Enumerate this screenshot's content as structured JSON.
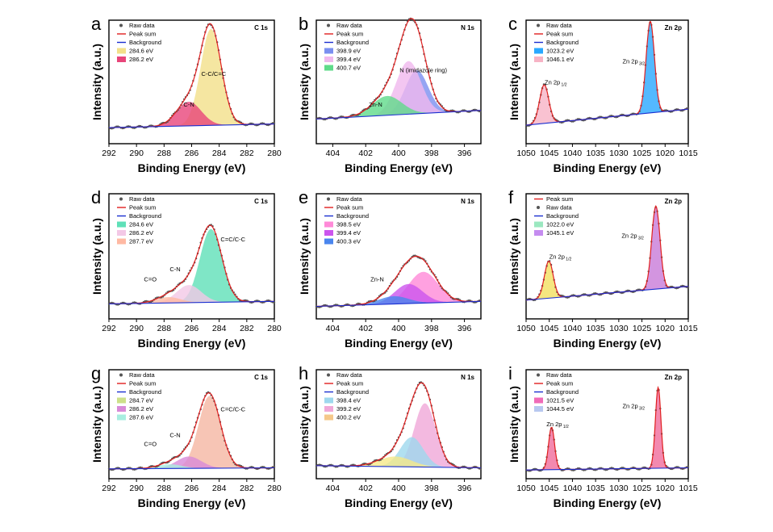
{
  "figure": {
    "panel_letters": [
      "a",
      "b",
      "c",
      "d",
      "e",
      "f",
      "g",
      "h",
      "i"
    ]
  },
  "chart_data": [
    {
      "panel": "a",
      "type": "line",
      "region": "C 1s",
      "xlabel": "Binding Energy (eV)",
      "ylabel": "Intensity (a.u.)",
      "xlim": [
        292,
        280
      ],
      "xticks": [
        "292",
        "290",
        "288",
        "286",
        "284",
        "282",
        "280"
      ],
      "legend": [
        {
          "label": "Raw data",
          "color": "#555555",
          "kind": "dot"
        },
        {
          "label": "Peak sum",
          "color": "#e02020",
          "kind": "line"
        },
        {
          "label": "Background",
          "color": "#1a2fd0",
          "kind": "line"
        },
        {
          "label": "284.6 eV",
          "color": "#f3e08a",
          "kind": "box"
        },
        {
          "label": "286.2 eV",
          "color": "#e8457a",
          "kind": "box"
        }
      ],
      "peaks": [
        {
          "center": 284.6,
          "height": 1.0,
          "sigma": 0.75,
          "color": "#f3e08a"
        },
        {
          "center": 286.2,
          "height": 0.25,
          "sigma": 0.9,
          "color": "#e8457a"
        }
      ],
      "annotations": [
        {
          "text": "C-N",
          "at": 286.2
        },
        {
          "text": "C-C/C=C",
          "at": 284.4
        }
      ]
    },
    {
      "panel": "b",
      "type": "line",
      "region": "N 1s",
      "xlabel": "Binding Energy (eV)",
      "ylabel": "Intensity (a.u.)",
      "xlim": [
        405,
        395
      ],
      "xticks": [
        "404",
        "402",
        "400",
        "398",
        "396"
      ],
      "legend": [
        {
          "label": "Raw data",
          "color": "#555555",
          "kind": "dot"
        },
        {
          "label": "Peak sum",
          "color": "#e02020",
          "kind": "line"
        },
        {
          "label": "Background",
          "color": "#1a2fd0",
          "kind": "line"
        },
        {
          "label": "398.9 eV",
          "color": "#7a8ff0",
          "kind": "box"
        },
        {
          "label": "399.4 eV",
          "color": "#f0b8ee",
          "kind": "box"
        },
        {
          "label": "400.7 eV",
          "color": "#5fdb8a",
          "kind": "box"
        }
      ],
      "peaks": [
        {
          "center": 398.9,
          "height": 0.45,
          "sigma": 0.7,
          "color": "#7a8ff0"
        },
        {
          "center": 399.4,
          "height": 0.55,
          "sigma": 0.75,
          "color": "#f0b8ee"
        },
        {
          "center": 400.7,
          "height": 0.2,
          "sigma": 0.9,
          "color": "#5fdb8a"
        }
      ],
      "annotations": [
        {
          "text": "Zn-N",
          "at": 401.4
        },
        {
          "text": "N (imidazole ring)",
          "at": 398.5
        }
      ]
    },
    {
      "panel": "c",
      "type": "line",
      "region": "Zn 2p",
      "xlabel": "Binding Energy (eV)",
      "ylabel": "Intensity (a.u.)",
      "xlim": [
        1050,
        1015
      ],
      "xticks": [
        "1050",
        "1045",
        "1040",
        "1035",
        "1030",
        "1025",
        "1020",
        "1015"
      ],
      "legend": [
        {
          "label": "Raw data",
          "color": "#555555",
          "kind": "dot"
        },
        {
          "label": "Peak sum",
          "color": "#e02020",
          "kind": "line"
        },
        {
          "label": "Background",
          "color": "#1a2fd0",
          "kind": "line"
        },
        {
          "label": "1023.2 eV",
          "color": "#29a8ff",
          "kind": "box"
        },
        {
          "label": "1046.1 eV",
          "color": "#f7b3c5",
          "kind": "box"
        }
      ],
      "peaks": [
        {
          "center": 1023.2,
          "height": 0.95,
          "sigma": 0.9,
          "color": "#29a8ff"
        },
        {
          "center": 1046.1,
          "height": 0.4,
          "sigma": 1.0,
          "color": "#f7b3c5"
        }
      ],
      "annotations": [
        {
          "text": "Zn 2p",
          "sub": "1/2",
          "at": 1043.6
        },
        {
          "text": "Zn 2p",
          "sub": "3/2",
          "at": 1026.8
        }
      ]
    },
    {
      "panel": "d",
      "type": "line",
      "region": "C 1s",
      "xlabel": "Binding Energy (eV)",
      "ylabel": "Intensity (a.u.)",
      "xlim": [
        292,
        280
      ],
      "xticks": [
        "292",
        "290",
        "288",
        "286",
        "284",
        "282",
        "280"
      ],
      "legend": [
        {
          "label": "Raw data",
          "color": "#555555",
          "kind": "dot"
        },
        {
          "label": "Peak sum",
          "color": "#e02020",
          "kind": "line"
        },
        {
          "label": "Background",
          "color": "#1a2fd0",
          "kind": "line"
        },
        {
          "label": "284.6 eV",
          "color": "#5fe0b8",
          "kind": "box"
        },
        {
          "label": "286.2 eV",
          "color": "#f3c8e6",
          "kind": "box"
        },
        {
          "label": "287.7 eV",
          "color": "#ffb9a3",
          "kind": "box"
        }
      ],
      "peaks": [
        {
          "center": 284.6,
          "height": 0.75,
          "sigma": 0.8,
          "color": "#5fe0b8"
        },
        {
          "center": 286.2,
          "height": 0.18,
          "sigma": 0.9,
          "color": "#f3c8e6"
        },
        {
          "center": 287.7,
          "height": 0.06,
          "sigma": 0.9,
          "color": "#ffb9a3"
        }
      ],
      "annotations": [
        {
          "text": "C=O",
          "at": 289.0
        },
        {
          "text": "C-N",
          "at": 287.2
        },
        {
          "text": "C=C/C-C",
          "at": 283.0
        }
      ]
    },
    {
      "panel": "e",
      "type": "line",
      "region": "N 1s",
      "xlabel": "Binding Energy (eV)",
      "ylabel": "Intensity (a.u.)",
      "xlim": [
        405,
        395
      ],
      "xticks": [
        "404",
        "402",
        "400",
        "398",
        "396"
      ],
      "legend": [
        {
          "label": "Raw data",
          "color": "#555555",
          "kind": "dot"
        },
        {
          "label": "Peak sum",
          "color": "#e02020",
          "kind": "line"
        },
        {
          "label": "Background",
          "color": "#1a2fd0",
          "kind": "line"
        },
        {
          "label": "398.5 eV",
          "color": "#ff8ad8",
          "kind": "box"
        },
        {
          "label": "399.4 eV",
          "color": "#cc55ee",
          "kind": "box"
        },
        {
          "label": "400.3 eV",
          "color": "#4a86ee",
          "kind": "box"
        }
      ],
      "peaks": [
        {
          "center": 398.5,
          "height": 0.32,
          "sigma": 0.9,
          "color": "#ff8ad8"
        },
        {
          "center": 399.4,
          "height": 0.2,
          "sigma": 0.85,
          "color": "#cc55ee"
        },
        {
          "center": 400.3,
          "height": 0.08,
          "sigma": 0.9,
          "color": "#4a86ee"
        }
      ],
      "annotations": [
        {
          "text": "Zn-N",
          "at": 401.3
        }
      ]
    },
    {
      "panel": "f",
      "type": "line",
      "region": "Zn 2p",
      "xlabel": "Binding Energy (eV)",
      "ylabel": "Intensity (a.u.)",
      "xlim": [
        1050,
        1015
      ],
      "xticks": [
        "1050",
        "1045",
        "1040",
        "1035",
        "1030",
        "1025",
        "1020",
        "1015"
      ],
      "legend": [
        {
          "label": "Peak sum",
          "color": "#e02020",
          "kind": "line"
        },
        {
          "label": "Raw data",
          "color": "#555555",
          "kind": "dot"
        },
        {
          "label": "Background",
          "color": "#1a2fd0",
          "kind": "line"
        },
        {
          "label": "1022.0 eV",
          "color": "#9be8c0",
          "kind": "box"
        },
        {
          "label": "1045.1 eV",
          "color": "#c58cf0",
          "kind": "box"
        }
      ],
      "peaks": [
        {
          "center": 1022.0,
          "height": 0.85,
          "sigma": 0.9,
          "color": "#c87ad8"
        },
        {
          "center": 1045.1,
          "height": 0.38,
          "sigma": 0.95,
          "color": "#f2e060"
        }
      ],
      "annotations": [
        {
          "text": "Zn 2p",
          "sub": "1/2",
          "at": 1042.6
        },
        {
          "text": "Zn 2p",
          "sub": "3/2",
          "at": 1027.0
        }
      ]
    },
    {
      "panel": "g",
      "type": "line",
      "region": "C 1s",
      "xlabel": "Binding Energy (eV)",
      "ylabel": "Intensity (a.u.)",
      "xlim": [
        292,
        280
      ],
      "xticks": [
        "292",
        "290",
        "288",
        "286",
        "284",
        "282",
        "280"
      ],
      "legend": [
        {
          "label": "Raw data",
          "color": "#555555",
          "kind": "dot"
        },
        {
          "label": "Peak sum",
          "color": "#e02020",
          "kind": "line"
        },
        {
          "label": "Background",
          "color": "#1a2fd0",
          "kind": "line"
        },
        {
          "label": "284.7 eV",
          "color": "#cde08a",
          "kind": "box"
        },
        {
          "label": "286.2 eV",
          "color": "#d88ad8",
          "kind": "box"
        },
        {
          "label": "287.6 eV",
          "color": "#a8eee0",
          "kind": "box"
        }
      ],
      "peaks": [
        {
          "center": 284.7,
          "height": 0.85,
          "sigma": 0.8,
          "color": "#f5b7a3"
        },
        {
          "center": 286.2,
          "height": 0.14,
          "sigma": 0.9,
          "color": "#d88ad8"
        },
        {
          "center": 287.6,
          "height": 0.05,
          "sigma": 0.9,
          "color": "#a8eee0"
        }
      ],
      "annotations": [
        {
          "text": "C=O",
          "at": 289.0
        },
        {
          "text": "C-N",
          "at": 287.2
        },
        {
          "text": "C=C/C-C",
          "at": 283.0
        }
      ]
    },
    {
      "panel": "h",
      "type": "line",
      "region": "N 1s",
      "xlabel": "Binding Energy (eV)",
      "ylabel": "Intensity (a.u.)",
      "xlim": [
        405,
        395
      ],
      "xticks": [
        "404",
        "402",
        "400",
        "398",
        "396"
      ],
      "legend": [
        {
          "label": "Raw data",
          "color": "#555555",
          "kind": "dot"
        },
        {
          "label": "Peak sum",
          "color": "#e02020",
          "kind": "line"
        },
        {
          "label": "Background",
          "color": "#1a2fd0",
          "kind": "line"
        },
        {
          "label": "398.4 eV",
          "color": "#9ed8ee",
          "kind": "box"
        },
        {
          "label": "399.2 eV",
          "color": "#f0a8d8",
          "kind": "box"
        },
        {
          "label": "400.2 eV",
          "color": "#f5c88a",
          "kind": "box"
        }
      ],
      "peaks": [
        {
          "center": 398.4,
          "height": 0.75,
          "sigma": 0.65,
          "color": "#f0a8d8"
        },
        {
          "center": 399.2,
          "height": 0.35,
          "sigma": 0.7,
          "color": "#9ed8ee"
        },
        {
          "center": 400.2,
          "height": 0.12,
          "sigma": 1.0,
          "color": "#f5e88a"
        }
      ],
      "annotations": []
    },
    {
      "panel": "i",
      "type": "line",
      "region": "Zn 2p",
      "xlabel": "Binding Energy (eV)",
      "ylabel": "Intensity (a.u.)",
      "xlim": [
        1050,
        1015
      ],
      "xticks": [
        "1050",
        "1045",
        "1040",
        "1035",
        "1030",
        "1025",
        "1020",
        "1015"
      ],
      "legend": [
        {
          "label": "Raw data",
          "color": "#555555",
          "kind": "dot"
        },
        {
          "label": "Peak sum",
          "color": "#e02020",
          "kind": "line"
        },
        {
          "label": "Background",
          "color": "#1a2fd0",
          "kind": "line"
        },
        {
          "label": "1021.5 eV",
          "color": "#f06bb8",
          "kind": "box"
        },
        {
          "label": "1044.5 eV",
          "color": "#b8c8f0",
          "kind": "box"
        }
      ],
      "peaks": [
        {
          "center": 1021.5,
          "height": 0.95,
          "sigma": 0.6,
          "color": "#f06b9b"
        },
        {
          "center": 1044.5,
          "height": 0.5,
          "sigma": 0.65,
          "color": "#f06b9b"
        }
      ],
      "annotations": [
        {
          "text": "Zn 2p",
          "sub": "1/2",
          "at": 1043.2
        },
        {
          "text": "Zn 2p",
          "sub": "3/2",
          "at": 1026.8
        }
      ]
    }
  ]
}
